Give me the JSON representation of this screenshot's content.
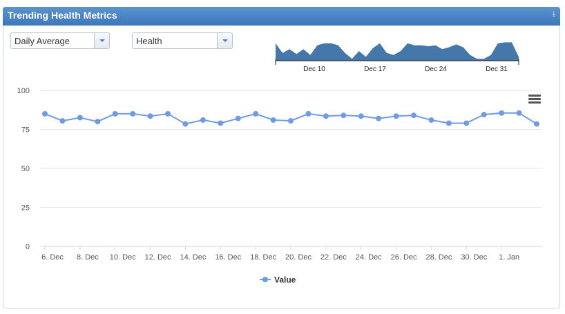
{
  "panel": {
    "title": "Trending Health Metrics",
    "tool_icon": "download-icon"
  },
  "controls": {
    "aggregation": {
      "selected": "Daily Average"
    },
    "metric": {
      "selected": "Health"
    }
  },
  "navigator": {
    "labels": [
      "Dec 10",
      "Dec 17",
      "Dec 24",
      "Dec 31"
    ],
    "color": "#4478aa",
    "values": [
      78,
      68,
      72,
      67,
      72,
      66,
      76,
      78,
      78,
      76,
      68,
      62,
      70,
      64,
      73,
      78,
      68,
      66,
      70,
      78,
      76,
      76,
      75,
      76,
      72,
      74,
      77,
      74,
      66,
      62,
      62,
      66,
      78,
      79,
      79,
      64
    ]
  },
  "chart_menu_icon": "hamburger-menu-icon",
  "chart_data": {
    "type": "line",
    "x_tick_labels": [
      "6. Dec",
      "8. Dec",
      "10. Dec",
      "12. Dec",
      "14. Dec",
      "16. Dec",
      "18. Dec",
      "20. Dec",
      "22. Dec",
      "24. Dec",
      "26. Dec",
      "28. Dec",
      "30. Dec",
      "1. Jan"
    ],
    "y_ticks": [
      0,
      25,
      50,
      75,
      100
    ],
    "ylim": [
      0,
      100
    ],
    "grid": true,
    "legend_position": "bottom-center",
    "series": [
      {
        "name": "Value",
        "color": "#6f9be6",
        "x": [
          "2023-12-06",
          "2023-12-07",
          "2023-12-08",
          "2023-12-09",
          "2023-12-10",
          "2023-12-11",
          "2023-12-12",
          "2023-12-13",
          "2023-12-14",
          "2023-12-15",
          "2023-12-16",
          "2023-12-17",
          "2023-12-18",
          "2023-12-19",
          "2023-12-20",
          "2023-12-21",
          "2023-12-22",
          "2023-12-23",
          "2023-12-24",
          "2023-12-25",
          "2023-12-26",
          "2023-12-27",
          "2023-12-28",
          "2023-12-29",
          "2023-12-30",
          "2023-12-31",
          "2024-01-01",
          "2024-01-02",
          "2024-01-03"
        ],
        "values": [
          85,
          80.5,
          82.5,
          80,
          85,
          85,
          83.5,
          85,
          78.5,
          81,
          79,
          82,
          85,
          81,
          80.5,
          85,
          83.5,
          84,
          83.5,
          82,
          83.5,
          84,
          81,
          79,
          79,
          84.5,
          85.5,
          85.5,
          78.5
        ]
      }
    ]
  }
}
